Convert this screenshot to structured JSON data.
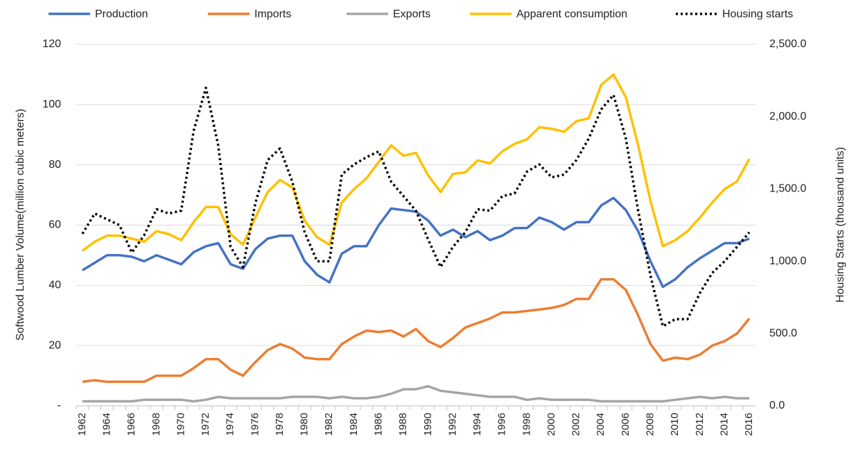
{
  "chart_data": {
    "type": "line",
    "y_label": "Softwood Lumber Volume(million cubic meters)",
    "y2_label": "Housing Starts (thousand units)",
    "categories": [
      "1962",
      null,
      "1964",
      null,
      "1966",
      null,
      "1968",
      null,
      "1970",
      null,
      "1972",
      null,
      "1974",
      null,
      "1976",
      null,
      "1978",
      null,
      "1980",
      null,
      "1982",
      null,
      "1984",
      null,
      "1986",
      null,
      "1988",
      null,
      "1990",
      null,
      "1992",
      null,
      "1994",
      null,
      "1996",
      null,
      "1998",
      null,
      "2000",
      null,
      "2002",
      null,
      "2004",
      null,
      "2006",
      null,
      "2008",
      null,
      "2010",
      null,
      "2012",
      null,
      "2014",
      null,
      "2016"
    ],
    "series": [
      {
        "name": "Production",
        "color": "#4472c4",
        "style": "solid",
        "values": [
          45,
          47.5,
          50,
          50,
          49.5,
          48,
          50,
          48.5,
          47,
          51,
          53,
          54,
          47,
          45.5,
          52,
          55.5,
          56.5,
          56.5,
          48,
          43.5,
          41,
          50.5,
          53,
          53,
          60,
          65.5,
          65,
          64.5,
          61.5,
          56.5,
          58.5,
          56,
          58,
          55,
          56.5,
          59,
          59,
          62.5,
          61,
          58.5,
          61,
          61,
          66.5,
          69,
          65,
          58,
          48,
          39.5,
          42,
          46,
          49,
          51.5,
          54,
          54,
          55.5
        ]
      },
      {
        "name": "Imports",
        "color": "#ed7d31",
        "style": "solid",
        "values": [
          8,
          8.5,
          8,
          8,
          8,
          8,
          10,
          10,
          10,
          12.5,
          15.5,
          15.5,
          12,
          10,
          14.5,
          18.5,
          20.5,
          19,
          16,
          15.5,
          15.5,
          20.5,
          23,
          25,
          24.5,
          25,
          23,
          25.5,
          21.5,
          19.5,
          22.5,
          26,
          27.5,
          29,
          31,
          31,
          31.5,
          32,
          32.5,
          33.5,
          35.5,
          35.5,
          42,
          42,
          38.5,
          30,
          20.5,
          15,
          16,
          15.5,
          17,
          20,
          21.5,
          24,
          29
        ]
      },
      {
        "name": "Exports",
        "color": "#a5a5a5",
        "style": "solid",
        "values": [
          1.5,
          1.5,
          1.5,
          1.5,
          1.5,
          2,
          2,
          2,
          2,
          1.5,
          2,
          3,
          2.5,
          2.5,
          2.5,
          2.5,
          2.5,
          3,
          3,
          3,
          2.5,
          3,
          2.5,
          2.5,
          3,
          4,
          5.5,
          5.5,
          6.5,
          5,
          4.5,
          4,
          3.5,
          3,
          3,
          3,
          2,
          2.5,
          2,
          2,
          2,
          2,
          1.5,
          1.5,
          1.5,
          1.5,
          1.5,
          1.5,
          2,
          2.5,
          3,
          2.5,
          3,
          2.5,
          2.5
        ]
      },
      {
        "name": "Apparent consumption",
        "color": "#ffc000",
        "style": "solid",
        "values": [
          51.5,
          54.5,
          56.5,
          56.5,
          55.5,
          54.5,
          58,
          57,
          55,
          61,
          66,
          66,
          57,
          53.5,
          62.5,
          71,
          75,
          72.5,
          61.5,
          56,
          53.5,
          67.5,
          72,
          75.5,
          81,
          86.5,
          83,
          84,
          76.5,
          71,
          77,
          77.5,
          81.5,
          80.5,
          84.5,
          87,
          88.5,
          92.5,
          92,
          91,
          94.5,
          95.5,
          106.5,
          110,
          102.5,
          86.5,
          68,
          53,
          55,
          58,
          62.5,
          67.5,
          72,
          74.5,
          82
        ]
      },
      {
        "name": "Housing starts",
        "color": "#000000",
        "style": "dotted",
        "axis": "y2",
        "values": [
          1190,
          1330,
          1290,
          1250,
          1060,
          1180,
          1360,
          1330,
          1350,
          1900,
          2200,
          1800,
          1100,
          960,
          1400,
          1700,
          1780,
          1550,
          1200,
          1000,
          1000,
          1600,
          1670,
          1720,
          1760,
          1550,
          1450,
          1350,
          1150,
          960,
          1100,
          1200,
          1360,
          1350,
          1450,
          1470,
          1620,
          1670,
          1580,
          1600,
          1700,
          1850,
          2050,
          2150,
          1850,
          1350,
          900,
          550,
          600,
          600,
          780,
          920,
          1000,
          1100,
          1200
        ]
      }
    ],
    "ylim": [
      0,
      120
    ],
    "yticks": [
      {
        "value": 0,
        "label": "-"
      },
      20,
      40,
      60,
      80,
      100,
      120
    ],
    "y2lim": [
      0,
      2500
    ],
    "y2ticks": [
      {
        "value": 0,
        "label": "0.0"
      },
      {
        "value": 500,
        "label": "500.0"
      },
      {
        "value": 1000,
        "label": "1,000.0"
      },
      {
        "value": 1500,
        "label": "1,500.0"
      },
      {
        "value": 2000,
        "label": "2,000.0"
      },
      {
        "value": 2500,
        "label": "2,500.0"
      }
    ],
    "grid": true,
    "legend": "top"
  }
}
